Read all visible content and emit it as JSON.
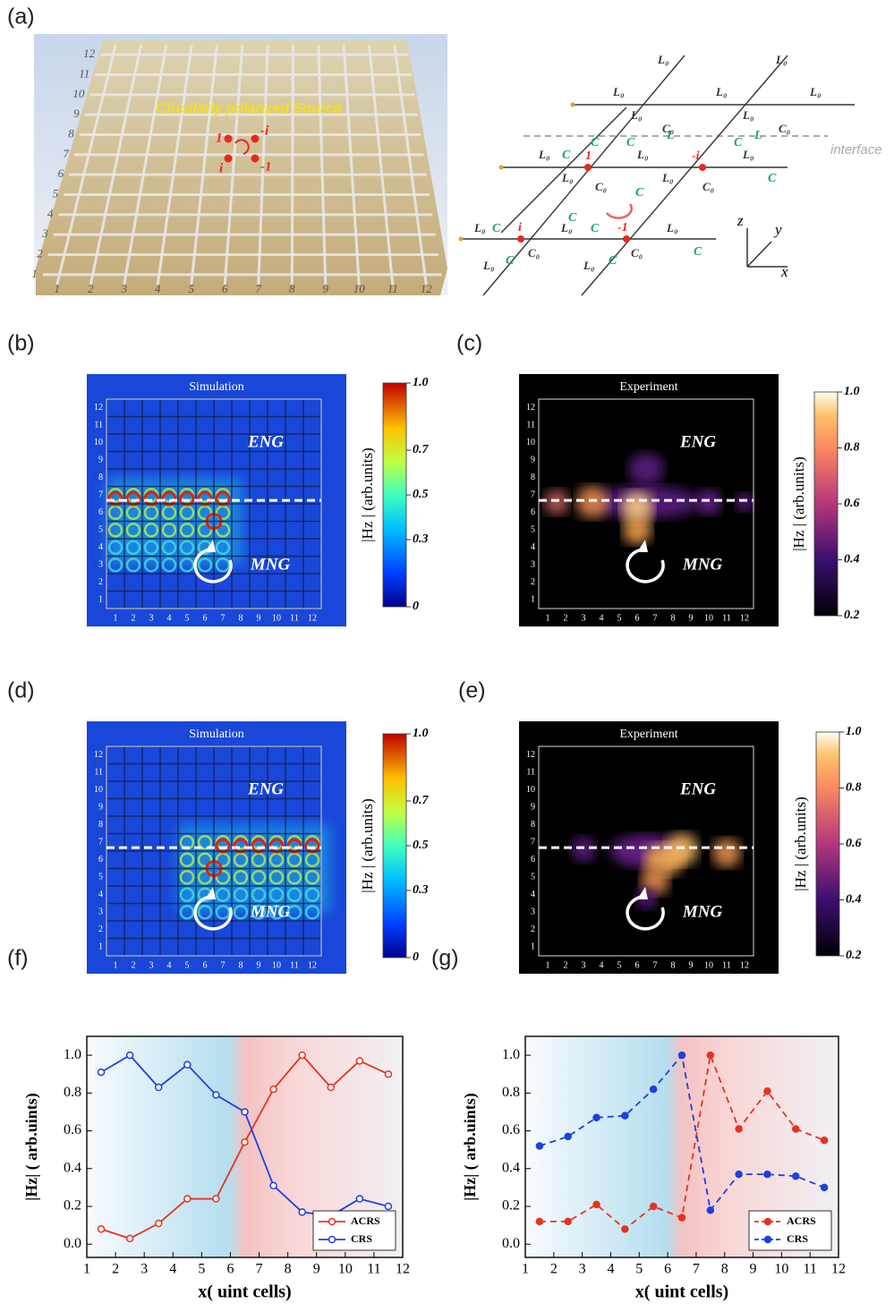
{
  "panels": {
    "a": {
      "label": "(a)",
      "source_text": "Circularly polarized Source",
      "phase_labels": [
        "1",
        "-i",
        "i",
        "-1"
      ],
      "inductor_label": "L₀",
      "capacitor_label": "C",
      "ground_cap_label": "C₀",
      "link_inductor_label": "L",
      "interface_label": "interface",
      "axis_labels": [
        "z",
        "y",
        "x"
      ]
    },
    "b": {
      "label": "(b)",
      "title": "Simulation",
      "regions": [
        "ENG",
        "MNG"
      ],
      "colorbar_ticks": [
        "1.0",
        "0.7",
        "0.5",
        "0.3",
        "0"
      ],
      "colorbar_label": "|Hz | (arb.units)"
    },
    "c": {
      "label": "(c)",
      "title": "Experiment",
      "regions": [
        "ENG",
        "MNG"
      ],
      "colorbar_ticks": [
        "1.0",
        "0.8",
        "0.6",
        "0.4",
        "0.2"
      ],
      "colorbar_label": "|Hz | (arb.units)"
    },
    "d": {
      "label": "(d)",
      "title": "Simulation",
      "regions": [
        "ENG",
        "MNG"
      ],
      "colorbar_ticks": [
        "1.0",
        "0.7",
        "0.5",
        "0.3",
        "0"
      ],
      "colorbar_label": "|Hz | (arb.units)"
    },
    "e": {
      "label": "(e)",
      "title": "Experiment",
      "regions": [
        "ENG",
        "MNG"
      ],
      "colorbar_ticks": [
        "1.0",
        "0.8",
        "0.6",
        "0.4",
        "0.2"
      ],
      "colorbar_label": "|Hz | (arb.units)"
    }
  },
  "grid_numbers": [
    "1",
    "2",
    "3",
    "4",
    "5",
    "6",
    "7",
    "8",
    "9",
    "10",
    "11",
    "12"
  ],
  "chart_data": [
    {
      "type": "line",
      "label": "(f)",
      "x_label": "x( uint cells)",
      "y_label": "|Hz| ( arb.uints)",
      "x": [
        1.5,
        2.5,
        3.5,
        4.5,
        5.5,
        6.5,
        7.5,
        8.5,
        9.5,
        10.5,
        11.5
      ],
      "series": [
        {
          "name": "ACRS",
          "color": "#e8321e",
          "values": [
            0.08,
            0.03,
            0.11,
            0.24,
            0.24,
            0.54,
            0.82,
            1.0,
            0.83,
            0.97,
            0.9
          ]
        },
        {
          "name": "CRS",
          "color": "#1f3fe0",
          "values": [
            0.91,
            1.0,
            0.83,
            0.95,
            0.79,
            0.7,
            0.31,
            0.17,
            0.15,
            0.24,
            0.2
          ]
        }
      ],
      "xlim": [
        1,
        12
      ],
      "xticks": [
        1,
        2,
        3,
        4,
        5,
        6,
        7,
        8,
        9,
        10,
        11,
        12
      ],
      "ylim": [
        -0.07,
        1.1
      ],
      "yticks": [
        {
          "value": 0,
          "label": "0.0"
        },
        0.2,
        0.4,
        0.6,
        0.8,
        {
          "value": 1,
          "label": "1.0"
        }
      ],
      "dashed": false,
      "legend": "lower right"
    },
    {
      "type": "line",
      "label": "(g)",
      "x_label": "x( uint cells)",
      "y_label": "|Hz| ( arb.uints)",
      "x": [
        1.5,
        2.5,
        3.5,
        4.5,
        5.5,
        6.5,
        7.5,
        8.5,
        9.5,
        10.5,
        11.5
      ],
      "series": [
        {
          "name": "ACRS",
          "color": "#e8321e",
          "values": [
            0.12,
            0.12,
            0.21,
            0.08,
            0.2,
            0.14,
            1.0,
            0.61,
            0.81,
            0.61,
            0.55
          ]
        },
        {
          "name": "CRS",
          "color": "#1f3fe0",
          "values": [
            0.52,
            0.57,
            0.67,
            0.68,
            0.82,
            1.0,
            0.18,
            0.37,
            0.37,
            0.36,
            0.3
          ]
        }
      ],
      "xlim": [
        1,
        12
      ],
      "xticks": [
        1,
        2,
        3,
        4,
        5,
        6,
        7,
        8,
        9,
        10,
        11,
        12
      ],
      "ylim": [
        -0.07,
        1.1
      ],
      "yticks": [
        {
          "value": 0,
          "label": "0.0"
        },
        0.2,
        0.4,
        0.6,
        0.8,
        {
          "value": 1,
          "label": "1.0"
        }
      ],
      "dashed": true,
      "legend": "lower right"
    }
  ]
}
